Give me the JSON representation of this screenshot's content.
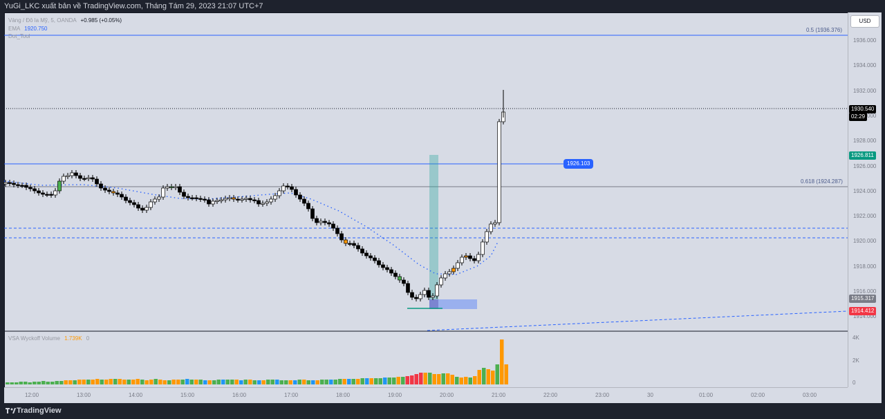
{
  "header": {
    "text": "YuGi_LKC xuất bản về TradingView.com, Tháng Tám 29, 2023 21:07 UTC+7"
  },
  "legend": {
    "symbol": "Vàng / Đô la Mỹ, 5, OANDA",
    "change": "+0.985 (+0.05%)",
    "ema_label": "EMA",
    "ema_value": "1920.750",
    "extra": "Dot_Tool",
    "vol_label": "VSA Wyckoff Volume",
    "vol_value": "1.739K",
    "vol_extra": "0"
  },
  "currency_button": "USD",
  "price_axis": [
    "1936.000",
    "1934.000",
    "1932.000",
    "1930.000",
    "1928.000",
    "1926.000",
    "1924.000",
    "1922.000",
    "1920.000",
    "1918.000",
    "1916.000",
    "1914.000"
  ],
  "volume_axis": [
    "4K",
    "2K",
    "0"
  ],
  "time_axis": [
    "12:00",
    "13:00",
    "14:00",
    "15:00",
    "16:00",
    "17:00",
    "18:00",
    "19:00",
    "20:00",
    "21:00",
    "22:00",
    "23:00",
    "30",
    "01:00",
    "02:00",
    "03:00"
  ],
  "price_tags": {
    "last": "1930.540",
    "countdown": "02:29",
    "green": "1926.811",
    "grey": "1915.317",
    "red": "1914.412",
    "callout": "1926.103"
  },
  "levels": {
    "fib_05": "0.5 (1936.376)",
    "fib_0618": "0.618 (1924.287)"
  },
  "footer": {
    "brand": "TradingView"
  },
  "colors": {
    "background": "#d7dbe5",
    "bull": "#ffffff",
    "bear": "#000000",
    "blue_line": "#2962ff",
    "vol_orange": "#ff9800",
    "vol_green": "#4caf50",
    "vol_red": "#f23645",
    "vol_purple": "#9c27b0",
    "vol_blue": "#2196f3"
  }
}
